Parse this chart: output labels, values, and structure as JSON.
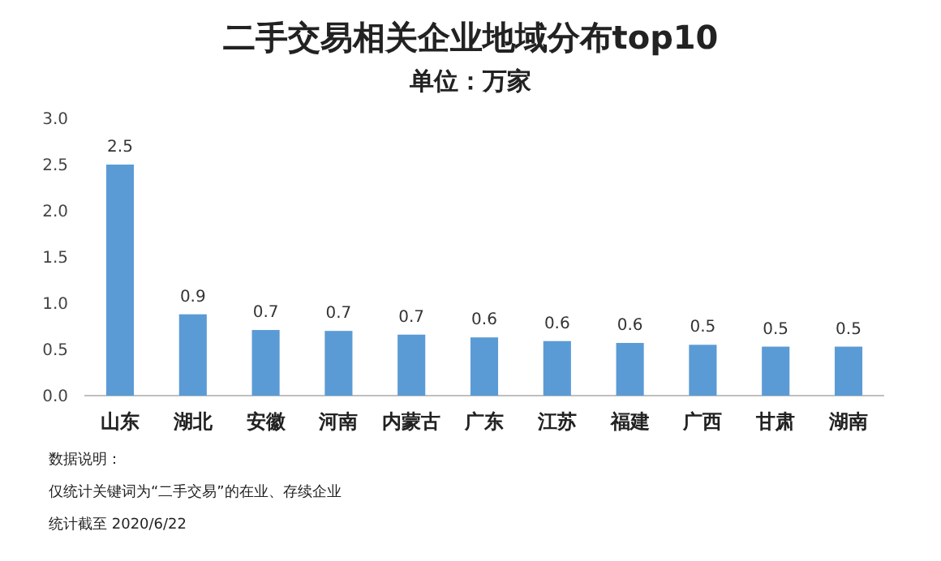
{
  "chart_data": {
    "type": "bar",
    "title": "二手交易相关企业地域分布top10",
    "subtitle": "单位：万家",
    "categories": [
      "山东",
      "湖北",
      "安徽",
      "河南",
      "内蒙古",
      "广东",
      "江苏",
      "福建",
      "广西",
      "甘肃",
      "湖南"
    ],
    "values": [
      2.5,
      0.88,
      0.71,
      0.7,
      0.66,
      0.63,
      0.59,
      0.57,
      0.55,
      0.53,
      0.53
    ],
    "value_labels": [
      "2.5",
      "0.9",
      "0.7",
      "0.7",
      "0.7",
      "0.6",
      "0.6",
      "0.6",
      "0.5",
      "0.5",
      "0.5"
    ],
    "color": "#5b9bd5",
    "ylim": [
      0,
      3
    ],
    "yticks": [
      {
        "value": 0,
        "label": "0.0"
      },
      {
        "value": 0.5,
        "label": "0.5"
      },
      {
        "value": 1,
        "label": "1.0"
      },
      {
        "value": 1.5,
        "label": "1.5"
      },
      {
        "value": 2,
        "label": "2.0"
      },
      {
        "value": 2.5,
        "label": "2.5"
      },
      {
        "value": 3,
        "label": "3.0"
      }
    ],
    "grid": false,
    "annotations": [
      "数据说明：",
      "仅统计关键词为“二手交易”的在业、存续企业",
      "统计截至 2020/6/22"
    ]
  }
}
